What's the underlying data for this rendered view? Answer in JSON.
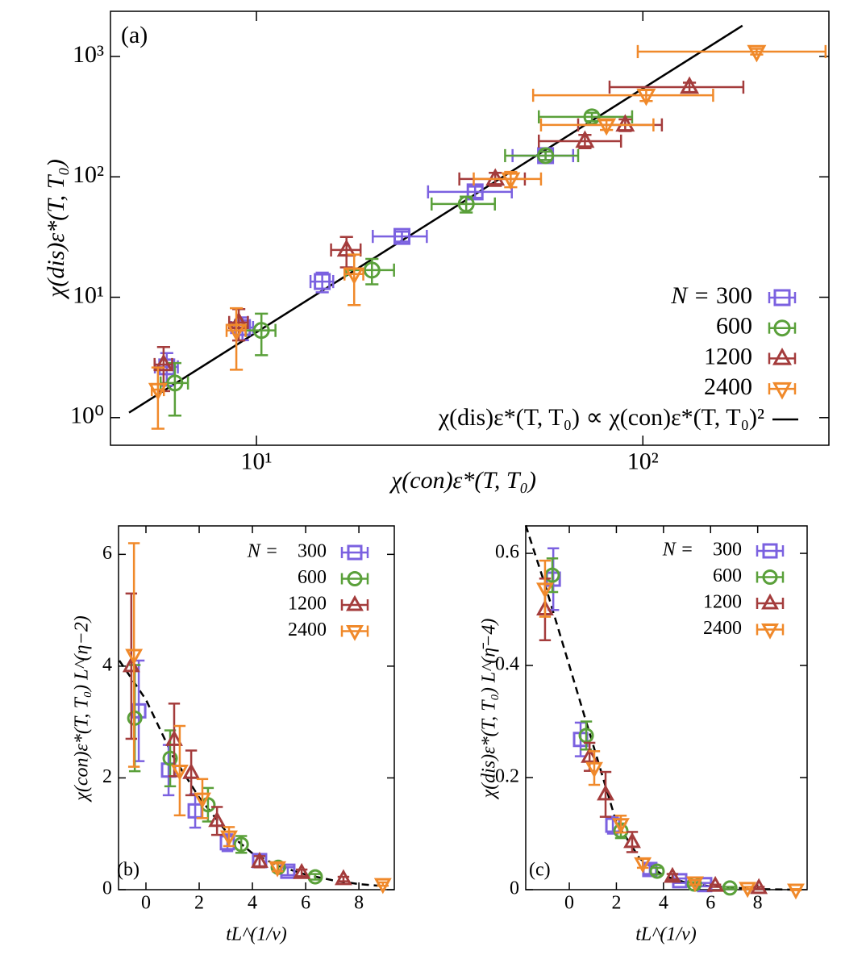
{
  "chart_data": [
    {
      "type": "scatter",
      "panel_label": "(a)",
      "log_x": true,
      "log_y": true,
      "xlabel": "χ(con)ε*(T, T₀)",
      "ylabel": "χ(dis)ε*(T, T₀)",
      "xlim": [
        4.19,
        303
      ],
      "ylim": [
        0.59,
        2371
      ],
      "xticks": [
        {
          "value": 10,
          "label": "10¹"
        },
        {
          "value": 100,
          "label": "10²"
        }
      ],
      "yticks": [
        {
          "value": 1,
          "label": "10⁰"
        },
        {
          "value": 10,
          "label": "10¹"
        },
        {
          "value": 100,
          "label": "10²"
        },
        {
          "value": 1000,
          "label": "10³"
        }
      ],
      "legend_title": "N =",
      "series": [
        {
          "name": "300",
          "color": "#7b61e0",
          "marker": "square",
          "x": [
            5.86,
            9.2,
            14.8,
            23.8,
            36.8,
            56
          ],
          "values": [
            2.64,
            5.6,
            13.5,
            32,
            75,
            150
          ],
          "xerr": [
            0.4,
            0.6,
            1.0,
            3.8,
            9,
            10
          ],
          "yerr": [
            0.8,
            1.2,
            2.5,
            3,
            8,
            12
          ]
        },
        {
          "name": "600",
          "color": "#5aa03a",
          "marker": "circle",
          "x": [
            6.15,
            10.3,
            19.9,
            34.9,
            56,
            73.8
          ],
          "values": [
            1.94,
            5.3,
            16.8,
            59.5,
            150,
            315
          ],
          "xerr": [
            0.5,
            0.9,
            2.8,
            6.5,
            12,
            20
          ],
          "yerr": [
            0.9,
            2,
            4,
            9,
            12,
            25
          ]
        },
        {
          "name": "1200",
          "color": "#a43c3c",
          "marker": "triangle-up",
          "x": [
            5.75,
            9.0,
            17.1,
            41.5,
            70.8,
            90,
            132
          ],
          "values": [
            2.76,
            6.17,
            24.7,
            96,
            198,
            270,
            556
          ],
          "xerr": [
            0.3,
            0.5,
            1.5,
            8,
            17,
            22,
            50
          ],
          "yerr": [
            1.1,
            1.8,
            7,
            12,
            25,
            30,
            50
          ]
        },
        {
          "name": "2400",
          "color": "#f0892a",
          "marker": "triangle-down",
          "x": [
            5.56,
            8.87,
            17.9,
            45.5,
            80.5,
            102,
            197
          ],
          "values": [
            1.71,
            5.3,
            15.6,
            96,
            270,
            476,
            1097
          ],
          "xerr": [
            0.2,
            0.5,
            1,
            9,
            26,
            50,
            100
          ],
          "yerr": [
            0.9,
            2.8,
            7,
            14,
            25,
            50,
            60
          ]
        }
      ],
      "fit": {
        "name": "χ(dis)ε*(T, T₀) ∝ χ(con)ε*(T, T₀)²",
        "color": "#000000",
        "style": "solid",
        "x": [
          4.68,
          181
        ],
        "values": [
          1.1,
          1800
        ]
      }
    },
    {
      "type": "scatter",
      "panel_label": "(b)",
      "log_x": false,
      "log_y": false,
      "xlabel": "tL^(1/ν)",
      "ylabel": "χ(con)ε*(T, T₀) L^(η−2)",
      "xlim": [
        -1.03,
        9.33
      ],
      "ylim": [
        0,
        6.51
      ],
      "xticks": [
        0,
        2,
        4,
        6,
        8
      ],
      "yticks": [
        0,
        2,
        4,
        6
      ],
      "legend_title": "N =",
      "series": [
        {
          "name": "300",
          "color": "#7b61e0",
          "marker": "square",
          "x": [
            -0.27,
            0.85,
            1.85,
            3.06,
            4.27,
            5.33
          ],
          "values": [
            3.2,
            2.14,
            1.41,
            0.84,
            0.52,
            0.33
          ],
          "yerr": [
            0.9,
            0.45,
            0.3,
            0.15,
            0.1,
            0.07
          ]
        },
        {
          "name": "600",
          "color": "#5aa03a",
          "marker": "circle",
          "x": [
            -0.42,
            0.91,
            2.33,
            3.58,
            4.97,
            6.36
          ],
          "values": [
            3.07,
            2.35,
            1.52,
            0.81,
            0.4,
            0.23
          ],
          "yerr": [
            0.95,
            0.5,
            0.3,
            0.15,
            0.08,
            0.05
          ]
        },
        {
          "name": "1200",
          "color": "#a43c3c",
          "marker": "triangle-up",
          "x": [
            -0.55,
            1.06,
            1.7,
            2.67,
            4.27,
            5.85,
            7.42
          ],
          "values": [
            4.0,
            2.68,
            2.09,
            1.23,
            0.5,
            0.3,
            0.19
          ],
          "yerr": [
            1.3,
            0.65,
            0.4,
            0.25,
            0.1,
            0.06,
            0.04
          ]
        },
        {
          "name": "2400",
          "color": "#f0892a",
          "marker": "triangle-down",
          "x": [
            -0.45,
            1.27,
            2.12,
            3.12,
            4.94,
            8.9
          ],
          "values": [
            4.2,
            2.13,
            1.63,
            0.95,
            0.4,
            0.1
          ],
          "yerr": [
            2.0,
            0.8,
            0.35,
            0.17,
            0.07,
            0.03
          ]
        }
      ],
      "fit": {
        "color": "#000000",
        "style": "dashed",
        "x": [
          -1,
          0,
          1,
          2,
          3,
          4,
          5,
          6,
          7,
          8,
          9
        ],
        "values": [
          4.1,
          3.4,
          2.4,
          1.65,
          1.05,
          0.65,
          0.42,
          0.27,
          0.17,
          0.1,
          0.06
        ]
      }
    },
    {
      "type": "scatter",
      "panel_label": "(c)",
      "log_x": false,
      "log_y": false,
      "xlabel": "tL^(1/ν)",
      "ylabel": "χ(dis)ε*(T, T₀) L^(η̄−4)",
      "xlim": [
        -1.85,
        10.1
      ],
      "ylim": [
        0,
        0.649
      ],
      "xticks": [
        0,
        2,
        4,
        6,
        8
      ],
      "yticks": [
        0,
        0.2,
        0.4,
        0.6
      ],
      "legend_title": "N =",
      "series": [
        {
          "name": "300",
          "color": "#7b61e0",
          "marker": "square",
          "x": [
            -0.68,
            0.48,
            1.85,
            3.42,
            4.69,
            5.75
          ],
          "values": [
            0.554,
            0.268,
            0.115,
            0.036,
            0.016,
            0.009
          ],
          "yerr": [
            0.055,
            0.03,
            0.015,
            0.008,
            0.004,
            0.003
          ]
        },
        {
          "name": "600",
          "color": "#5aa03a",
          "marker": "circle",
          "x": [
            -0.72,
            0.72,
            2.19,
            3.73,
            5.31,
            6.82
          ],
          "values": [
            0.561,
            0.275,
            0.105,
            0.033,
            0.01,
            0.003
          ],
          "yerr": [
            0.03,
            0.025,
            0.013,
            0.006,
            0.003,
            0.002
          ]
        },
        {
          "name": "1200",
          "color": "#a43c3c",
          "marker": "triangle-up",
          "x": [
            -1.03,
            0.86,
            1.54,
            2.67,
            4.38,
            6.2,
            8.05
          ],
          "values": [
            0.5,
            0.237,
            0.17,
            0.085,
            0.023,
            0.007,
            0.003
          ],
          "yerr": [
            0.055,
            0.025,
            0.04,
            0.018,
            0.005,
            0.002,
            0.002
          ]
        },
        {
          "name": "2400",
          "color": "#f0892a",
          "marker": "triangle-down",
          "x": [
            -1.03,
            1.06,
            2.19,
            3.12,
            5.34,
            7.57,
            9.62
          ],
          "values": [
            0.537,
            0.217,
            0.117,
            0.047,
            0.013,
            0.003,
            0
          ],
          "yerr": [
            0.05,
            0.03,
            0.015,
            0.008,
            0.004,
            0.002,
            0.001
          ]
        }
      ],
      "fit": {
        "color": "#000000",
        "style": "dashed",
        "x": [
          -1.85,
          -1,
          0,
          1,
          2,
          3,
          4,
          5,
          6,
          8,
          9.6
        ],
        "values": [
          0.65,
          0.54,
          0.4,
          0.26,
          0.12,
          0.055,
          0.025,
          0.012,
          0.006,
          0.001,
          0
        ]
      }
    }
  ]
}
